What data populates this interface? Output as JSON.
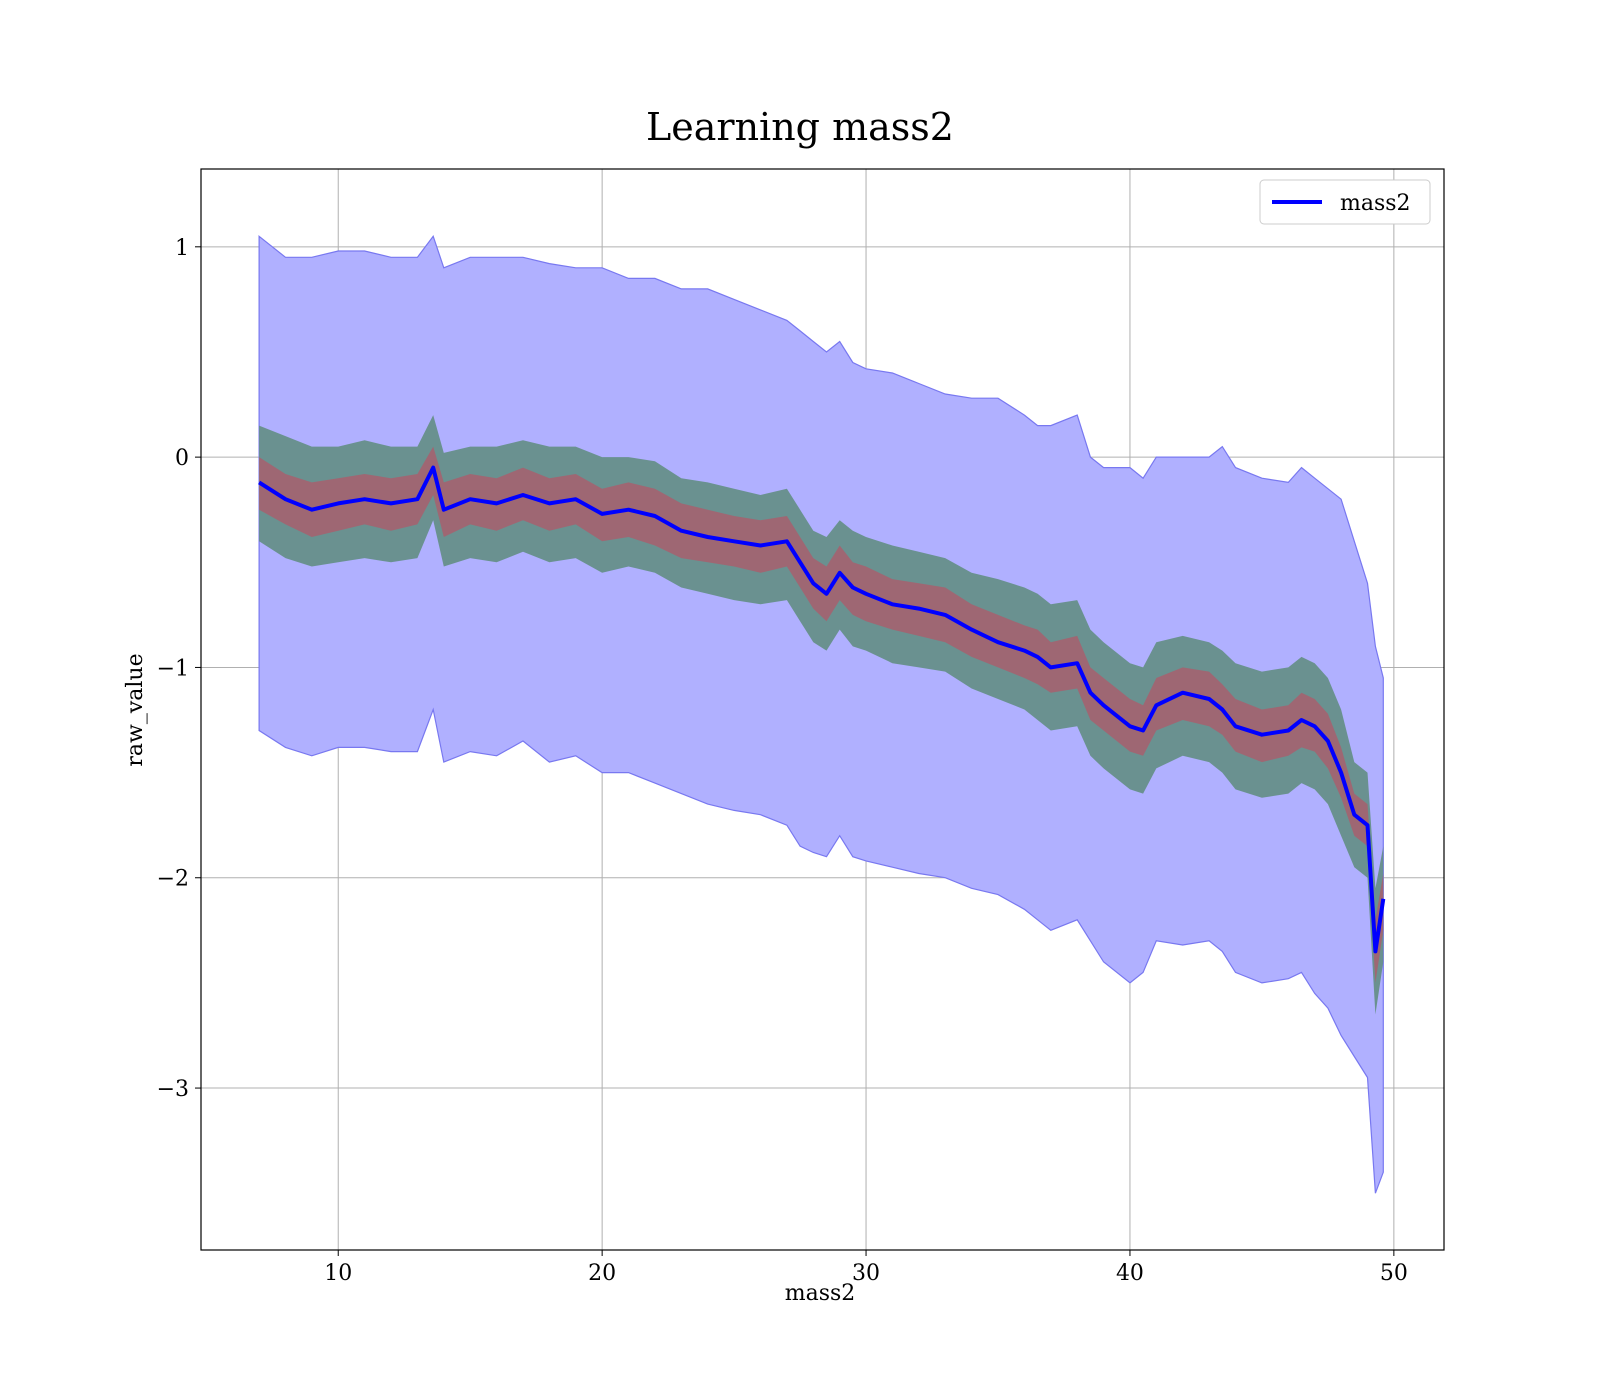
{
  "chart_data": {
    "type": "line",
    "title": "Learning mass2",
    "xlabel": "mass2",
    "ylabel": "raw_value",
    "xlim": [
      4.8,
      51.9
    ],
    "ylim": [
      -3.77,
      1.37
    ],
    "xticks": [
      10,
      20,
      30,
      40,
      50
    ],
    "xtick_labels": [
      "10",
      "20",
      "30",
      "40",
      "50"
    ],
    "yticks": [
      1,
      0,
      -1,
      -2,
      -3
    ],
    "ytick_labels": [
      "1",
      "0",
      "−1",
      "−2",
      "−3"
    ],
    "grid": true,
    "legend": {
      "position": "top-right",
      "entries": [
        "mass2"
      ]
    },
    "colors": {
      "line": "#0000ff",
      "outer_band": "#b0b0ff",
      "outer_band_edge": "#7878f0",
      "middle_band": "#5e8c7c",
      "inner_band": "#b05a6a",
      "grid": "#b0b0b0"
    },
    "x": [
      7.0,
      8.0,
      9.0,
      10.0,
      11.0,
      12.0,
      13.0,
      13.6,
      14.0,
      15.0,
      16.0,
      17.0,
      18.0,
      19.0,
      20.0,
      21.0,
      22.0,
      23.0,
      24.0,
      25.0,
      26.0,
      27.0,
      27.5,
      28.0,
      28.5,
      29.0,
      29.5,
      30.0,
      31.0,
      32.0,
      33.0,
      34.0,
      35.0,
      36.0,
      36.5,
      37.0,
      38.0,
      38.5,
      39.0,
      40.0,
      40.5,
      41.0,
      42.0,
      43.0,
      43.5,
      44.0,
      45.0,
      46.0,
      46.5,
      47.0,
      47.5,
      48.0,
      48.5,
      49.0,
      49.3,
      49.6
    ],
    "series": [
      {
        "name": "mass2",
        "values": [
          -0.12,
          -0.2,
          -0.25,
          -0.22,
          -0.2,
          -0.22,
          -0.2,
          -0.05,
          -0.25,
          -0.2,
          -0.22,
          -0.18,
          -0.22,
          -0.2,
          -0.27,
          -0.25,
          -0.28,
          -0.35,
          -0.38,
          -0.4,
          -0.42,
          -0.4,
          -0.5,
          -0.6,
          -0.65,
          -0.55,
          -0.62,
          -0.65,
          -0.7,
          -0.72,
          -0.75,
          -0.82,
          -0.88,
          -0.92,
          -0.95,
          -1.0,
          -0.98,
          -1.12,
          -1.18,
          -1.28,
          -1.3,
          -1.18,
          -1.12,
          -1.15,
          -1.2,
          -1.28,
          -1.32,
          -1.3,
          -1.25,
          -1.28,
          -1.35,
          -1.5,
          -1.7,
          -1.75,
          -2.35,
          -2.1
        ]
      }
    ],
    "bands": [
      {
        "name": "outer",
        "upper": [
          1.05,
          0.95,
          0.95,
          0.98,
          0.98,
          0.95,
          0.95,
          1.05,
          0.9,
          0.95,
          0.95,
          0.95,
          0.92,
          0.9,
          0.9,
          0.85,
          0.85,
          0.8,
          0.8,
          0.75,
          0.7,
          0.65,
          0.6,
          0.55,
          0.5,
          0.55,
          0.45,
          0.42,
          0.4,
          0.35,
          0.3,
          0.28,
          0.28,
          0.2,
          0.15,
          0.15,
          0.2,
          0.0,
          -0.05,
          -0.05,
          -0.1,
          0.0,
          0.0,
          0.0,
          0.05,
          -0.05,
          -0.1,
          -0.12,
          -0.05,
          -0.1,
          -0.15,
          -0.2,
          -0.4,
          -0.6,
          -0.9,
          -1.05
        ],
        "lower": [
          -1.3,
          -1.38,
          -1.42,
          -1.38,
          -1.38,
          -1.4,
          -1.4,
          -1.2,
          -1.45,
          -1.4,
          -1.42,
          -1.35,
          -1.45,
          -1.42,
          -1.5,
          -1.5,
          -1.55,
          -1.6,
          -1.65,
          -1.68,
          -1.7,
          -1.75,
          -1.85,
          -1.88,
          -1.9,
          -1.8,
          -1.9,
          -1.92,
          -1.95,
          -1.98,
          -2.0,
          -2.05,
          -2.08,
          -2.15,
          -2.2,
          -2.25,
          -2.2,
          -2.3,
          -2.4,
          -2.5,
          -2.45,
          -2.3,
          -2.32,
          -2.3,
          -2.35,
          -2.45,
          -2.5,
          -2.48,
          -2.45,
          -2.55,
          -2.62,
          -2.75,
          -2.85,
          -2.95,
          -3.5,
          -3.4
        ]
      },
      {
        "name": "middle",
        "upper": [
          0.15,
          0.1,
          0.05,
          0.05,
          0.08,
          0.05,
          0.05,
          0.2,
          0.02,
          0.05,
          0.05,
          0.08,
          0.05,
          0.05,
          0.0,
          0.0,
          -0.02,
          -0.1,
          -0.12,
          -0.15,
          -0.18,
          -0.15,
          -0.25,
          -0.35,
          -0.38,
          -0.3,
          -0.35,
          -0.38,
          -0.42,
          -0.45,
          -0.48,
          -0.55,
          -0.58,
          -0.62,
          -0.65,
          -0.7,
          -0.68,
          -0.82,
          -0.88,
          -0.98,
          -1.0,
          -0.88,
          -0.85,
          -0.88,
          -0.92,
          -0.98,
          -1.02,
          -1.0,
          -0.95,
          -0.98,
          -1.05,
          -1.2,
          -1.45,
          -1.5,
          -2.05,
          -1.85
        ],
        "lower": [
          -0.4,
          -0.48,
          -0.52,
          -0.5,
          -0.48,
          -0.5,
          -0.48,
          -0.3,
          -0.52,
          -0.48,
          -0.5,
          -0.45,
          -0.5,
          -0.48,
          -0.55,
          -0.52,
          -0.55,
          -0.62,
          -0.65,
          -0.68,
          -0.7,
          -0.68,
          -0.78,
          -0.88,
          -0.92,
          -0.82,
          -0.9,
          -0.92,
          -0.98,
          -1.0,
          -1.02,
          -1.1,
          -1.15,
          -1.2,
          -1.25,
          -1.3,
          -1.28,
          -1.42,
          -1.48,
          -1.58,
          -1.6,
          -1.48,
          -1.42,
          -1.45,
          -1.5,
          -1.58,
          -1.62,
          -1.6,
          -1.55,
          -1.58,
          -1.65,
          -1.8,
          -1.95,
          -2.0,
          -2.65,
          -2.4
        ]
      },
      {
        "name": "inner",
        "upper": [
          0.0,
          -0.08,
          -0.12,
          -0.1,
          -0.08,
          -0.1,
          -0.08,
          0.05,
          -0.12,
          -0.08,
          -0.1,
          -0.05,
          -0.1,
          -0.08,
          -0.15,
          -0.12,
          -0.15,
          -0.22,
          -0.25,
          -0.28,
          -0.3,
          -0.28,
          -0.38,
          -0.48,
          -0.52,
          -0.42,
          -0.5,
          -0.52,
          -0.58,
          -0.6,
          -0.62,
          -0.7,
          -0.75,
          -0.8,
          -0.82,
          -0.88,
          -0.85,
          -1.0,
          -1.05,
          -1.15,
          -1.18,
          -1.05,
          -1.0,
          -1.02,
          -1.08,
          -1.15,
          -1.2,
          -1.18,
          -1.12,
          -1.15,
          -1.22,
          -1.38,
          -1.6,
          -1.65,
          -2.2,
          -1.98
        ],
        "lower": [
          -0.25,
          -0.32,
          -0.38,
          -0.35,
          -0.32,
          -0.35,
          -0.32,
          -0.18,
          -0.38,
          -0.32,
          -0.35,
          -0.3,
          -0.35,
          -0.32,
          -0.4,
          -0.38,
          -0.42,
          -0.48,
          -0.5,
          -0.52,
          -0.55,
          -0.52,
          -0.62,
          -0.72,
          -0.78,
          -0.68,
          -0.75,
          -0.78,
          -0.82,
          -0.85,
          -0.88,
          -0.95,
          -1.0,
          -1.05,
          -1.08,
          -1.12,
          -1.1,
          -1.25,
          -1.3,
          -1.4,
          -1.42,
          -1.3,
          -1.25,
          -1.28,
          -1.32,
          -1.4,
          -1.45,
          -1.42,
          -1.38,
          -1.4,
          -1.48,
          -1.62,
          -1.8,
          -1.85,
          -2.5,
          -2.25
        ]
      }
    ]
  }
}
